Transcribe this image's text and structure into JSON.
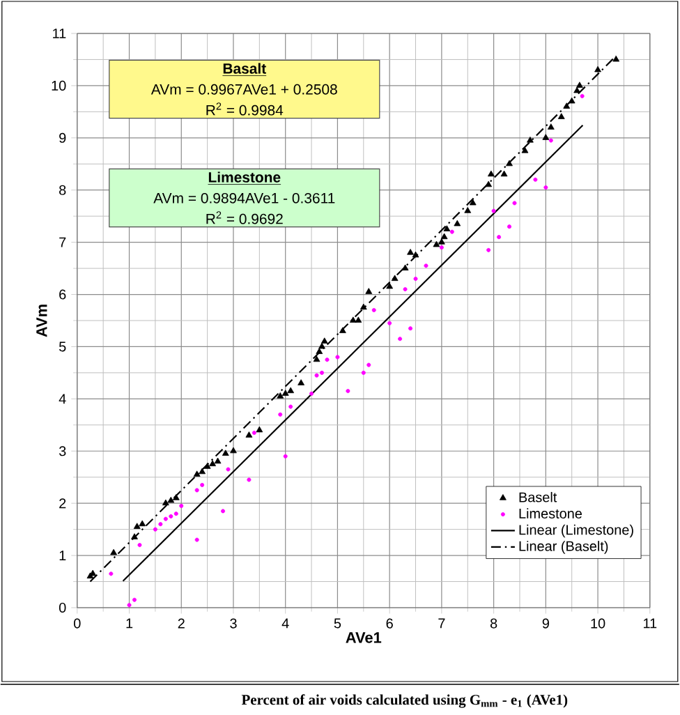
{
  "chart_data": {
    "type": "scatter",
    "xlabel": "AVe1",
    "ylabel": "AVm",
    "xlim": [
      0,
      11
    ],
    "ylim": [
      0,
      11
    ],
    "xticks": [
      0,
      1,
      2,
      3,
      4,
      5,
      6,
      7,
      8,
      9,
      10,
      11
    ],
    "yticks": [
      0,
      1,
      2,
      3,
      4,
      5,
      6,
      7,
      8,
      9,
      10,
      11
    ],
    "grid": true,
    "legend": "bottom right",
    "series": [
      {
        "name": "Baselt",
        "marker": "triangle",
        "color": "#000000",
        "x": [
          0.25,
          0.3,
          0.7,
          1.1,
          1.15,
          1.25,
          1.7,
          1.8,
          1.9,
          2.3,
          2.4,
          2.5,
          2.6,
          2.7,
          2.85,
          3.0,
          3.3,
          3.5,
          3.9,
          4.0,
          4.1,
          4.3,
          4.6,
          4.65,
          4.7,
          4.75,
          5.1,
          5.3,
          5.4,
          5.5,
          5.6,
          6.0,
          6.1,
          6.3,
          6.4,
          6.5,
          6.9,
          7.0,
          7.05,
          7.1,
          7.3,
          7.5,
          7.6,
          7.9,
          7.95,
          8.2,
          8.3,
          8.6,
          8.7,
          9.0,
          9.1,
          9.3,
          9.4,
          9.5,
          9.6,
          9.65,
          10.0,
          10.35
        ],
        "values": [
          0.6,
          0.65,
          1.05,
          1.35,
          1.55,
          1.6,
          2.0,
          2.05,
          2.1,
          2.55,
          2.6,
          2.7,
          2.75,
          2.8,
          2.95,
          3.0,
          3.3,
          3.4,
          4.05,
          4.1,
          4.15,
          4.3,
          4.75,
          4.9,
          5.0,
          5.1,
          5.3,
          5.5,
          5.5,
          5.75,
          6.05,
          6.15,
          6.3,
          6.5,
          6.8,
          6.75,
          6.95,
          7.0,
          7.1,
          7.25,
          7.35,
          7.6,
          7.75,
          8.1,
          8.3,
          8.3,
          8.5,
          8.75,
          8.95,
          9.0,
          9.2,
          9.4,
          9.6,
          9.7,
          9.9,
          10.0,
          10.3,
          10.5
        ]
      },
      {
        "name": "Limestone",
        "marker": "circle",
        "color": "#ff00ff",
        "x": [
          0.65,
          1.0,
          1.1,
          1.2,
          1.5,
          1.6,
          1.7,
          1.8,
          1.9,
          2.0,
          2.3,
          2.3,
          2.4,
          2.8,
          2.9,
          3.3,
          3.4,
          3.9,
          4.0,
          4.1,
          4.5,
          4.6,
          4.7,
          4.8,
          5.0,
          5.2,
          5.5,
          5.6,
          5.7,
          6.0,
          6.2,
          6.3,
          6.4,
          6.5,
          6.7,
          7.0,
          7.2,
          7.9,
          8.0,
          8.1,
          8.3,
          8.4,
          8.8,
          9.0,
          9.1,
          9.7
        ],
        "values": [
          0.65,
          0.05,
          0.15,
          1.2,
          1.5,
          1.6,
          1.7,
          1.75,
          1.8,
          1.95,
          1.3,
          2.25,
          2.35,
          1.85,
          2.65,
          2.45,
          3.35,
          3.7,
          2.9,
          3.85,
          4.1,
          4.45,
          4.5,
          4.75,
          4.8,
          4.15,
          4.5,
          4.65,
          5.7,
          5.45,
          5.15,
          6.1,
          5.35,
          6.3,
          6.55,
          6.9,
          7.2,
          6.85,
          7.6,
          7.1,
          7.3,
          7.75,
          8.2,
          8.05,
          8.95,
          9.8
        ]
      },
      {
        "name": "Linear (Limestone)",
        "type": "line",
        "marker": "none",
        "line_style": "solid",
        "color": "#000000",
        "x": [
          0.88,
          9.71
        ],
        "values": [
          0.51,
          9.24
        ]
      },
      {
        "name": "Linear (Baselt)",
        "type": "line",
        "marker": "none",
        "line_style": "dashed",
        "color": "#000000",
        "x": [
          0.25,
          10.35
        ],
        "values": [
          0.5,
          10.57
        ]
      }
    ],
    "annotations": [
      "Basalt",
      "AVm = 0.9967AVe1 + 0.2508",
      "R$^{2}$ = 0.9984",
      "Limestone",
      "AVm = 0.9894AVe1 - 0.3611",
      "R$^{2}$ = 0.9692",
      "Percent of air voids calculated using G$_{mm}$ - e$_{1}$ (AVe1)"
    ]
  }
}
